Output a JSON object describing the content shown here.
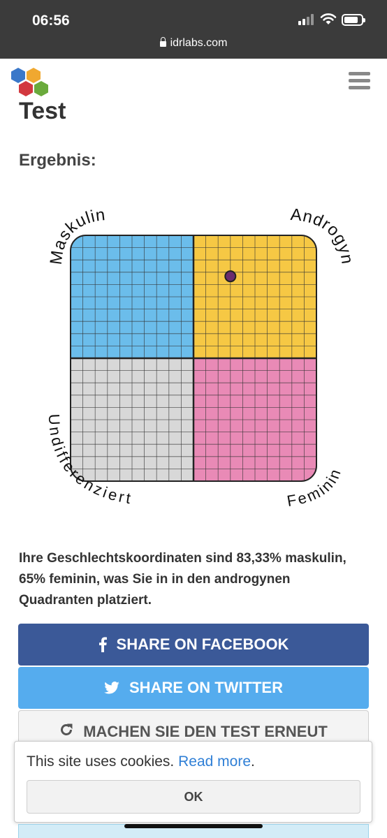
{
  "status_bar": {
    "time": "06:56",
    "url": "idrlabs.com",
    "icons": [
      "signal-icon",
      "wifi-icon",
      "battery-icon",
      "lock-icon"
    ]
  },
  "header": {
    "logo_icon": "idrlabs-logo",
    "menu_icon": "hamburger-menu-icon"
  },
  "page": {
    "title": "Test",
    "result_heading": "Ergebnis:"
  },
  "chart": {
    "labels": {
      "top_left": "Maskulin",
      "top_right": "Androgyn",
      "bottom_left": "Undifferenziert",
      "bottom_right": "Feminin"
    },
    "quadrant_colors": {
      "top_left": "#6bbdeb",
      "top_right": "#f6c844",
      "bottom_left": "#d8d8d8",
      "bottom_right": "#e98ab6"
    },
    "marker_color": "#6a2c6e",
    "marker": {
      "maskulin": 83.33,
      "feminin": 65
    }
  },
  "result_text": "Ihre Geschlechtskoordinaten sind 83,33% maskulin, 65% feminin, was Sie in in den androgynen Quadranten platziert.",
  "buttons": {
    "facebook": "SHARE ON FACEBOOK",
    "twitter": "SHARE ON TWITTER",
    "retake": "MACHEN SIE DEN TEST ERNEUT"
  },
  "colors": {
    "facebook": "#3b5998",
    "twitter": "#55acee",
    "link": "#2f7fd6"
  },
  "cookie_banner": {
    "text": "This site uses cookies.",
    "link_text": "Read more",
    "suffix": ".",
    "ok_label": "OK"
  }
}
